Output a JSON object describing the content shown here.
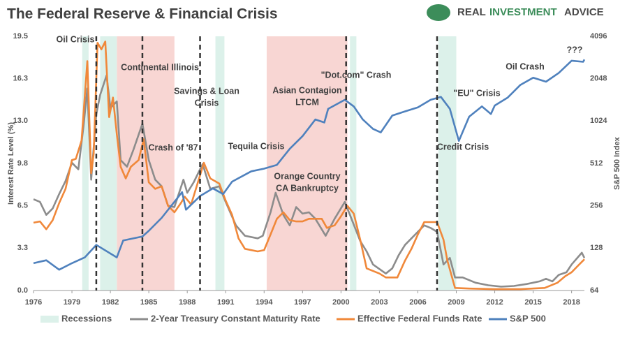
{
  "brand": {
    "words": [
      "REAL",
      "INVESTMENT",
      "ADVICE"
    ]
  },
  "chart_data": {
    "type": "line",
    "title": "The Federal Reserve & Financial Crisis",
    "y_label": "Interest Rate Level (%)",
    "y2_label": "S&P 500 Index",
    "xlim": [
      1976,
      2019
    ],
    "xticks": [
      1976,
      1979,
      1982,
      1985,
      1988,
      1991,
      1994,
      1997,
      2000,
      2003,
      2006,
      2009,
      2012,
      2015,
      2018
    ],
    "ylim": [
      0,
      19.5
    ],
    "yticks": [
      {
        "value": 0,
        "label": "0.0"
      },
      {
        "value": 3.25,
        "label": "3.3"
      },
      6.5,
      {
        "value": 9.75,
        "label": "9.8"
      },
      {
        "value": 13,
        "label": "13.0"
      },
      {
        "value": 16.25,
        "label": "16.3"
      },
      19.5
    ],
    "y2lim": [
      64,
      4096
    ],
    "y2ticks": [
      64,
      128,
      256,
      512,
      1024,
      2048,
      4096
    ],
    "y2_log": true,
    "recessions": {
      "name": "Recessions",
      "color": "#dcf1ea",
      "periods": [
        [
          1979.8,
          1980.3
        ],
        [
          1981.2,
          1982.5
        ],
        [
          1990.2,
          1990.9
        ],
        [
          2000.7,
          2001.2
        ],
        [
          2007.6,
          2009.0
        ]
      ]
    },
    "crisis_periods": {
      "color": "#f8d6d3",
      "periods": [
        [
          1982.5,
          1987.0
        ],
        [
          1994.2,
          2000.5
        ]
      ]
    },
    "fed_peaks": [
      1980.9,
      1984.5,
      1989.0,
      2000.4,
      2007.5
    ],
    "annotations": [
      [
        "Oil Crisis"
      ],
      [
        "Continental Illinois"
      ],
      [
        "Savings & Loan",
        "Crisis"
      ],
      [
        "Crash of '87"
      ],
      [
        "Tequila Crisis"
      ],
      [
        "Asian Contagion",
        "LTCM"
      ],
      [
        "\"Dot.com\" Crash"
      ],
      [
        "Orange Country",
        "CA Bankruptcy"
      ],
      [
        "\"EU\" Crisis"
      ],
      [
        "Credit Crisis"
      ],
      [
        "Oil Crash"
      ],
      [
        "???"
      ]
    ],
    "series": [
      {
        "name": "2-Year Treasury Constant Maturity Rate",
        "color": "#8c8c8c",
        "x": [
          1976,
          1976.5,
          1977,
          1977.5,
          1978,
          1978.5,
          1979,
          1979.5,
          1979.9,
          1980.2,
          1980.5,
          1980.9,
          1981.2,
          1981.7,
          1982,
          1982.5,
          1982.8,
          1983.3,
          1983.8,
          1984.5,
          1985,
          1985.5,
          1986,
          1986.5,
          1987,
          1987.7,
          1988,
          1988.5,
          1989.2,
          1989.8,
          1990.5,
          1991,
          1991.8,
          1992.5,
          1993.5,
          1993.9,
          1994.5,
          1994.9,
          1995.5,
          1996,
          1996.5,
          1997,
          1997.5,
          1998,
          1998.8,
          1999.5,
          2000.3,
          2000.9,
          2001.5,
          2002,
          2002.5,
          2003.5,
          2004,
          2004.5,
          2005,
          2005.5,
          2006.5,
          2007,
          2007.5,
          2008,
          2008.5,
          2008.9,
          2009.5,
          2010.5,
          2011.5,
          2012.5,
          2013.5,
          2014.5,
          2015.5,
          2016,
          2016.5,
          2017,
          2017.6,
          2018,
          2018.8,
          2019
        ],
        "values": [
          7.0,
          6.8,
          5.8,
          6.3,
          7.4,
          8.4,
          9.8,
          9.3,
          12.6,
          15.5,
          8.5,
          13.5,
          15.0,
          16.5,
          14.0,
          14.5,
          10.0,
          9.5,
          10.8,
          12.8,
          10.0,
          8.5,
          8.0,
          6.5,
          6.4,
          8.5,
          7.5,
          8.3,
          9.7,
          7.8,
          8.0,
          6.8,
          5.0,
          4.2,
          4.0,
          4.2,
          6.0,
          7.5,
          5.8,
          5.0,
          6.4,
          5.9,
          6.0,
          5.5,
          4.2,
          5.5,
          6.8,
          5.3,
          3.8,
          3.0,
          2.0,
          1.3,
          1.7,
          2.7,
          3.5,
          4.0,
          5.0,
          4.8,
          4.5,
          2.0,
          2.5,
          1.0,
          1.0,
          0.6,
          0.4,
          0.3,
          0.35,
          0.5,
          0.7,
          0.9,
          0.7,
          1.2,
          1.4,
          2.0,
          2.9,
          2.5
        ]
      },
      {
        "name": "Effective Federal Funds Rate",
        "color": "#f0883a",
        "x": [
          1976,
          1976.5,
          1977,
          1977.5,
          1978,
          1978.5,
          1979,
          1979.3,
          1979.75,
          1980.2,
          1980.5,
          1980.7,
          1981,
          1981.3,
          1981.6,
          1981.9,
          1982.2,
          1982.5,
          1982.8,
          1983.2,
          1983.6,
          1984.2,
          1984.6,
          1985,
          1985.5,
          1986,
          1986.5,
          1987,
          1987.5,
          1987.8,
          1988.3,
          1988.8,
          1989.3,
          1989.8,
          1990.5,
          1991,
          1991.5,
          1992,
          1992.5,
          1993.5,
          1994,
          1994.5,
          1995,
          1995.5,
          1996,
          1996.5,
          1997,
          1997.5,
          1998.5,
          1998.9,
          1999.5,
          2000,
          2000.5,
          2001,
          2001.5,
          2002,
          2003,
          2003.5,
          2004.4,
          2005,
          2005.5,
          2006,
          2006.5,
          2007.5,
          2008,
          2008.3,
          2008.9,
          2010,
          2012,
          2014,
          2015.9,
          2016.9,
          2017.5,
          2018,
          2018.5,
          2018.9,
          2019
        ],
        "values": [
          5.2,
          5.3,
          4.7,
          5.4,
          6.7,
          7.8,
          10.0,
          10.1,
          11.5,
          17.6,
          9.0,
          10.5,
          19.0,
          18.5,
          19.1,
          13.3,
          14.8,
          12.0,
          9.5,
          8.6,
          9.5,
          10.0,
          11.6,
          8.3,
          7.8,
          8.0,
          6.5,
          6.0,
          6.7,
          7.2,
          6.6,
          8.2,
          9.8,
          8.6,
          8.2,
          6.9,
          5.8,
          4.0,
          3.2,
          3.0,
          3.1,
          4.3,
          5.5,
          6.0,
          5.4,
          5.3,
          5.3,
          5.5,
          5.5,
          4.8,
          5.0,
          5.7,
          6.5,
          5.9,
          3.9,
          1.7,
          1.3,
          1.0,
          1.0,
          2.3,
          3.2,
          4.3,
          5.25,
          5.25,
          3.9,
          2.3,
          0.2,
          0.15,
          0.1,
          0.1,
          0.2,
          0.6,
          1.1,
          1.4,
          1.9,
          2.3,
          2.4
        ]
      },
      {
        "name": "S&P 500",
        "color": "#4f81bd",
        "axis": "y2",
        "x": [
          1976,
          1977,
          1978,
          1979,
          1980,
          1980.9,
          1982.5,
          1983,
          1984.5,
          1985,
          1986,
          1987.6,
          1987.9,
          1989,
          1990,
          1990.8,
          1991.5,
          1993,
          1994,
          1995,
          1996,
          1997,
          1998,
          1998.7,
          1999,
          2000.3,
          2001,
          2001.7,
          2002.5,
          2003.1,
          2004,
          2005,
          2006,
          2007,
          2007.8,
          2008.5,
          2009.2,
          2010,
          2011,
          2011.7,
          2012,
          2013,
          2014,
          2015,
          2016,
          2017,
          2018,
          2018.9,
          2019
        ],
        "values": [
          100,
          105,
          90,
          100,
          110,
          135,
          110,
          145,
          155,
          170,
          210,
          320,
          240,
          300,
          340,
          310,
          380,
          450,
          470,
          500,
          650,
          800,
          1050,
          1000,
          1250,
          1450,
          1300,
          1050,
          900,
          850,
          1120,
          1200,
          1280,
          1450,
          1520,
          1250,
          740,
          1100,
          1300,
          1150,
          1320,
          1500,
          1850,
          2080,
          1950,
          2250,
          2750,
          2700,
          2800
        ]
      }
    ]
  }
}
